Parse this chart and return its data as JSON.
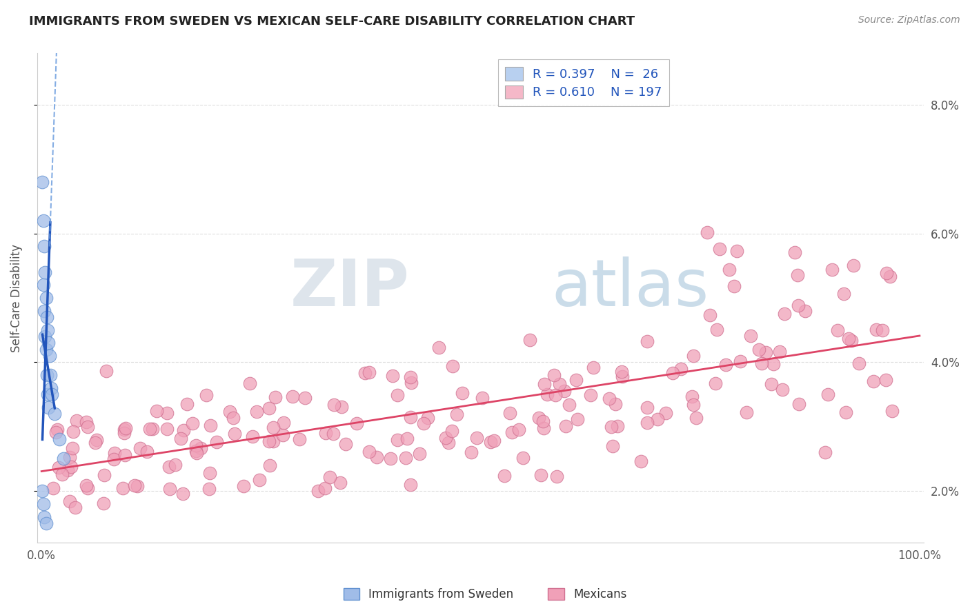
{
  "title": "IMMIGRANTS FROM SWEDEN VS MEXICAN SELF-CARE DISABILITY CORRELATION CHART",
  "source": "Source: ZipAtlas.com",
  "ylabel": "Self-Care Disability",
  "ytick_labels": [
    "2.0%",
    "4.0%",
    "6.0%",
    "8.0%"
  ],
  "ytick_values": [
    0.02,
    0.04,
    0.06,
    0.08
  ],
  "legend_entries": [
    {
      "label": "Immigrants from Sweden",
      "R": "0.397",
      "N": "26",
      "color": "#b8d0f0"
    },
    {
      "label": "Mexicans",
      "R": "0.610",
      "N": "197",
      "color": "#f5b8c8"
    }
  ],
  "watermark_zip": "ZIP",
  "watermark_atlas": "atlas",
  "xlim": [
    -0.005,
    1.005
  ],
  "ylim": [
    0.012,
    0.088
  ],
  "sweden_scatter_color": "#a0bce8",
  "sweden_scatter_edge": "#6090d0",
  "mexican_scatter_color": "#f0a0b8",
  "mexican_scatter_edge": "#d07090",
  "sweden_line_color": "#2255bb",
  "swedish_line_dash_color": "#6699dd",
  "mexican_line_color": "#dd4466",
  "background_color": "#ffffff",
  "grid_color": "#dddddd",
  "title_color": "#222222",
  "source_color": "#888888",
  "tick_color": "#555555"
}
